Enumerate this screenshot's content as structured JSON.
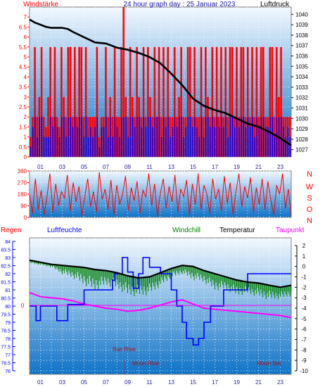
{
  "title": "24 hour graph day : 25 Januar 2023",
  "colors": {
    "grad_top": "#f3f9ff",
    "grad_bottom": "#0f73c7",
    "wind": "#ff0000",
    "gust": "#0000ff",
    "pressure": "#000000",
    "humidity": "#0000ff",
    "windchill": "#008000",
    "temperature": "#000000",
    "dewpoint": "#ff00ff",
    "rain": "#ff0000",
    "text_blue": "#1a1aa8",
    "text_dark": "#6a1020"
  },
  "chart_data": [
    {
      "type": "bar",
      "left_label": "Windstärke",
      "right_label": "Luftdruck",
      "y_left_ticks": [
        "0",
        "0.5",
        "1",
        "1.5",
        "2",
        "2.5",
        "3",
        "3.5",
        "4",
        "4.5",
        "5",
        "5.5",
        "6",
        "6.5",
        "7"
      ],
      "ylim_left": [
        0,
        7.5
      ],
      "y_right_ticks": [
        "1027",
        "1028",
        "1029",
        "1030",
        "1031",
        "1032",
        "1033",
        "1034",
        "1035",
        "1036",
        "1037",
        "1038",
        "1039",
        "1040"
      ],
      "ylim_right": [
        1026.3,
        1040.7
      ],
      "x_ticks": [
        "01",
        "03",
        "05",
        "07",
        "09",
        "11",
        "13",
        "15",
        "17",
        "19",
        "21",
        "23"
      ],
      "series": [
        {
          "name": "Windstärke",
          "values": [
            1.0,
            2.0,
            5.5,
            2.0,
            3.0,
            5.5,
            2.0,
            1.5,
            3.0,
            5.5,
            2.0,
            5.5,
            2.0,
            1.5,
            5.5,
            3.0,
            2.0,
            5.5,
            5.5,
            2.0,
            5.5,
            2.0,
            5.5,
            5.5,
            2.0,
            5.5,
            2.0,
            2.0,
            2.0,
            2.0,
            5.5,
            1.0,
            2.0,
            2.0,
            5.5,
            2.0,
            3.0,
            2.0,
            5.5,
            2.0,
            2.0,
            5.5,
            7.5,
            3.0,
            2.0,
            5.5,
            3.0,
            2.0,
            5.5,
            3.0,
            2.0,
            5.5,
            2.0,
            5.5,
            3.0,
            2.0,
            5.5,
            2.0,
            5.5,
            2.0,
            5.5,
            2.0,
            5.5,
            2.0,
            2.0,
            5.5,
            2.0,
            3.0,
            5.5,
            2.0,
            2.0,
            5.5,
            5.5,
            2.0,
            5.5,
            2.0,
            2.0,
            5.5,
            2.0,
            5.5,
            3.0,
            2.0,
            5.5,
            2.0,
            5.5,
            2.0,
            5.5,
            2.0,
            5.5,
            2.0,
            5.5,
            5.5,
            2.0,
            5.5,
            2.0,
            5.5,
            5.5,
            2.0,
            5.5,
            2.0,
            5.5,
            2.0,
            5.5,
            2.0,
            5.5,
            5.5,
            2.0,
            2.0,
            5.5,
            5.5,
            2.0,
            5.5,
            3.0,
            5.5,
            2.0,
            2.0,
            2.0,
            2.0
          ]
        },
        {
          "name": "Böen",
          "values": [
            0.5,
            1.5,
            2.0,
            1.0,
            2.0,
            2.0,
            1.0,
            1.0,
            1.0,
            2.0,
            1.5,
            2.0,
            1.5,
            1.0,
            2.0,
            2.0,
            1.0,
            2.0,
            2.0,
            1.5,
            2.0,
            1.5,
            2.0,
            2.0,
            1.0,
            2.0,
            1.0,
            1.5,
            1.0,
            1.5,
            2.0,
            0.5,
            1.5,
            1.5,
            2.0,
            1.0,
            2.0,
            1.0,
            2.0,
            1.5,
            1.0,
            2.0,
            2.0,
            2.0,
            1.0,
            2.0,
            2.0,
            1.5,
            2.0,
            2.0,
            1.5,
            2.0,
            1.5,
            2.0,
            2.0,
            1.5,
            2.0,
            2.0,
            2.0,
            1.0,
            2.0,
            1.5,
            2.0,
            1.0,
            1.5,
            2.0,
            1.5,
            2.0,
            2.0,
            1.0,
            1.5,
            2.0,
            2.0,
            1.5,
            2.0,
            1.5,
            1.0,
            2.0,
            1.0,
            2.0,
            2.0,
            1.5,
            2.0,
            1.5,
            2.0,
            1.5,
            2.0,
            1.5,
            2.0,
            1.0,
            2.0,
            2.0,
            1.5,
            2.0,
            1.5,
            2.0,
            2.0,
            1.5,
            2.0,
            1.5,
            2.0,
            1.0,
            2.0,
            1.5,
            2.0,
            2.0,
            1.5,
            1.5,
            2.0,
            2.0,
            1.0,
            2.0,
            2.0,
            2.0,
            1.5,
            1.0,
            1.5,
            1.0
          ]
        },
        {
          "name": "Luftdruck",
          "hours": [
            0,
            0.5,
            1,
            1.5,
            2,
            3,
            3.5,
            4,
            5,
            6,
            7,
            7.5,
            8,
            9,
            10,
            11,
            12,
            13,
            14,
            15,
            16,
            17,
            18,
            19,
            20,
            21,
            22,
            23,
            24
          ],
          "values": [
            1039.5,
            1039.2,
            1039.0,
            1038.8,
            1038.7,
            1038.7,
            1038.6,
            1038.3,
            1037.8,
            1037.3,
            1037.2,
            1037.0,
            1036.8,
            1036.6,
            1036.3,
            1035.9,
            1035.3,
            1034.3,
            1033.2,
            1031.9,
            1031.2,
            1030.8,
            1030.5,
            1030.0,
            1029.5,
            1029.2,
            1028.7,
            1028.1,
            1027.4
          ]
        }
      ]
    },
    {
      "type": "line",
      "y_left_ticks": [
        "0",
        "90",
        "180",
        "270",
        "360"
      ],
      "ylim_left": [
        0,
        360
      ],
      "y_right_labels": [
        "N",
        "W",
        "S",
        "O",
        "N"
      ],
      "series": [
        {
          "name": "Windrichtung",
          "values": [
            180,
            30,
            300,
            60,
            210,
            20,
            160,
            340,
            40,
            260,
            90,
            200,
            150,
            330,
            50,
            270,
            120,
            240,
            10,
            160,
            300,
            80,
            200,
            40,
            350,
            140,
            220,
            60,
            290,
            20,
            250,
            100,
            180,
            320,
            50,
            230,
            130,
            280,
            30,
            210,
            160,
            340,
            90,
            260,
            10,
            190,
            300,
            70,
            240,
            120,
            330,
            40,
            220,
            160,
            290,
            20,
            260,
            100,
            340,
            60,
            250,
            180,
            30,
            300,
            140,
            220,
            50,
            320,
            110,
            270,
            20,
            200,
            340,
            80,
            240,
            150,
            310,
            40,
            230,
            100,
            300,
            60,
            280,
            130,
            20,
            250,
            180,
            340,
            70,
            220,
            10
          ]
        }
      ]
    },
    {
      "type": "line",
      "labels": {
        "rain": "Regen",
        "humidity": "Luftfeuchte",
        "windchill": "Windchill",
        "temperature": "Temperatur",
        "dewpoint": "Taupunkt"
      },
      "y_hum_ticks": [
        "84",
        "83.5",
        "83",
        "82.5",
        "82",
        "81.5",
        "81",
        "80.5",
        "80",
        "79.5",
        "79",
        "78.5",
        "78",
        "77.5",
        "77",
        "76.5",
        "76"
      ],
      "ylim_hum": [
        76,
        84
      ],
      "rain_zero_label": "0",
      "y_temp_ticks": [
        "2",
        "1",
        "0",
        "-1",
        "-2",
        "-3",
        "-4",
        "-5",
        "-6",
        "-7",
        "-8",
        "-9",
        "-10"
      ],
      "ylim_temp": [
        -10,
        2
      ],
      "annotations": {
        "sun_rise": "Sun Rise",
        "moon_rise": "Moon Rise",
        "moon_set": "Moon Set"
      },
      "series": [
        {
          "name": "Temperatur",
          "hours": [
            0,
            1,
            2,
            3,
            4,
            5,
            6,
            7,
            8,
            9,
            10,
            11,
            12,
            13,
            14,
            15,
            16,
            17,
            18,
            19,
            20,
            21,
            22,
            23,
            24
          ],
          "values": [
            0.6,
            0.4,
            0.2,
            0.1,
            0.0,
            -0.1,
            -0.3,
            -0.4,
            -0.6,
            -0.9,
            -1.1,
            -1.0,
            -0.6,
            -0.2,
            0.1,
            0.0,
            -0.4,
            -0.7,
            -1.0,
            -1.3,
            -1.5,
            -1.6,
            -1.8,
            -2.0,
            -1.8
          ]
        },
        {
          "name": "Windchill",
          "hours": [
            0,
            1,
            2,
            3,
            4,
            5,
            6,
            7,
            8,
            9,
            10,
            11,
            12,
            13,
            14,
            15,
            16,
            17,
            18,
            19,
            20,
            21,
            22,
            23,
            24
          ],
          "values": [
            0.3,
            0.1,
            -0.1,
            -0.8,
            -1.2,
            -1.9,
            -2.5,
            -1.9,
            -2.2,
            -2.9,
            -3.0,
            -2.8,
            -2.0,
            -1.2,
            -0.8,
            -1.4,
            -1.6,
            -2.4,
            -2.3,
            -2.9,
            -2.7,
            -3.0,
            -3.3,
            -3.2,
            -2.9
          ]
        },
        {
          "name": "Taupunkt",
          "hours": [
            0,
            1,
            2,
            3,
            4,
            5,
            6,
            7,
            8,
            9,
            10,
            11,
            12,
            13,
            14,
            15,
            16,
            17,
            18,
            19,
            20,
            21,
            22,
            23,
            24
          ],
          "values": [
            -2.5,
            -2.9,
            -3.0,
            -3.1,
            -3.3,
            -3.6,
            -3.8,
            -4.0,
            -4.1,
            -4.3,
            -4.2,
            -4.0,
            -3.7,
            -3.4,
            -3.2,
            -3.6,
            -4.0,
            -4.1,
            -4.2,
            -4.3,
            -4.4,
            -4.5,
            -4.6,
            -4.7,
            -4.9
          ]
        },
        {
          "name": "Luftfeuchte",
          "steps": [
            [
              0,
              80.0
            ],
            [
              0.6,
              79.1
            ],
            [
              1.0,
              80.0
            ],
            [
              2.5,
              79.1
            ],
            [
              3.5,
              80.1
            ],
            [
              5.0,
              81.0
            ],
            [
              7.6,
              81.6
            ],
            [
              7.8,
              82.0
            ],
            [
              8.5,
              83.0
            ],
            [
              9.0,
              82.1
            ],
            [
              9.5,
              81.1
            ],
            [
              10.0,
              82.0
            ],
            [
              10.4,
              83.0
            ],
            [
              11.0,
              82.4
            ],
            [
              12.0,
              82.0
            ],
            [
              13.0,
              81.0
            ],
            [
              13.5,
              80.0
            ],
            [
              14.0,
              79.0
            ],
            [
              14.4,
              78.0
            ],
            [
              15.0,
              77.6
            ],
            [
              15.5,
              78.0
            ],
            [
              16.0,
              79.0
            ],
            [
              16.6,
              80.0
            ],
            [
              17.8,
              81.0
            ],
            [
              20.0,
              82.0
            ],
            [
              24.0,
              82.0
            ]
          ]
        }
      ]
    }
  ]
}
